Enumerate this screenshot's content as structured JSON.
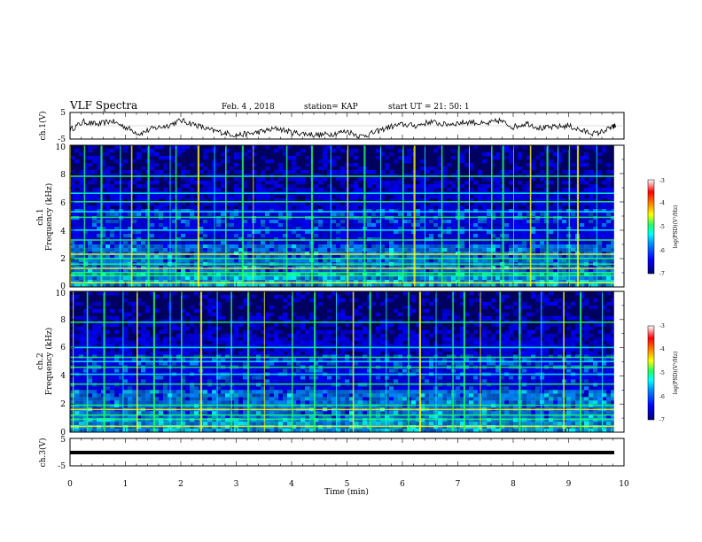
{
  "header": {
    "title": "VLF Spectra",
    "date": "Feb. 4 , 2018",
    "station": "station= KAP",
    "start": "start UT =   21: 50: 1"
  },
  "colors": {
    "colormap": [
      "#00007a",
      "#0000ff",
      "#0090ff",
      "#00ffff",
      "#20ff60",
      "#ffff00",
      "#ff7f00",
      "#ff0000",
      "#ffffff"
    ]
  },
  "chart_data": [
    {
      "type": "line",
      "ylabel": "ch.1(V)",
      "ylim": [
        -5,
        5
      ],
      "yticks": [
        "5",
        "-5"
      ],
      "xlim": [
        0,
        10
      ],
      "x": [
        0,
        0.25,
        0.5,
        0.75,
        1.0,
        1.25,
        1.5,
        1.75,
        2.0,
        2.25,
        2.5,
        2.75,
        3.0,
        3.25,
        3.5,
        3.75,
        4.0,
        4.25,
        4.5,
        4.75,
        5.0,
        5.25,
        5.5,
        5.75,
        6.0,
        6.25,
        6.5,
        6.75,
        7.0,
        7.25,
        7.5,
        7.75,
        8.0,
        8.25,
        8.5,
        8.75,
        9.0,
        9.25,
        9.5,
        9.75,
        9.85
      ],
      "y": [
        -1.5,
        1.5,
        0.5,
        1.8,
        -0.5,
        -3.0,
        -1.0,
        0.0,
        2.0,
        0.5,
        -1.5,
        -2.5,
        -3.5,
        -3.0,
        -2.0,
        -1.0,
        -2.5,
        -3.0,
        -3.5,
        -3.0,
        -2.0,
        -4.0,
        -2.5,
        -0.5,
        0.5,
        0.0,
        1.5,
        0.5,
        1.0,
        1.5,
        0.5,
        2.0,
        -0.5,
        1.0,
        -1.0,
        -0.5,
        0.0,
        -2.0,
        -3.0,
        -1.0,
        0.0
      ]
    },
    {
      "type": "heatmap",
      "ylabel": "ch.1 Frequency (kHz)",
      "ylim": [
        0,
        10
      ],
      "yticks": [
        "0",
        "2",
        "4",
        "6",
        "8",
        "10"
      ],
      "colorbar": {
        "label": "log(PSD)(V²/Hz)",
        "ticks": [
          "-3",
          "-4",
          "-5",
          "-6",
          "-7"
        ],
        "range": [
          -7,
          -3
        ]
      },
      "horizontal_bands_kHz": [
        0.3,
        0.8,
        1.0,
        1.3,
        1.6,
        2.0,
        2.3,
        3.3,
        4.0,
        4.9,
        5.3,
        6.0,
        6.6,
        7.8
      ],
      "impulse_times_min": [
        0.0,
        0.25,
        0.55,
        0.9,
        1.1,
        1.4,
        1.8,
        1.9,
        2.3,
        2.6,
        2.8,
        3.1,
        3.3,
        3.9,
        4.35,
        4.7,
        5.0,
        5.3,
        5.6,
        6.0,
        6.2,
        6.4,
        6.7,
        7.0,
        7.2,
        7.6,
        7.8,
        8.0,
        8.3,
        8.6,
        8.8,
        9.0,
        9.15,
        9.5
      ]
    },
    {
      "type": "heatmap",
      "ylabel": "ch.2 Frequency (kHz)",
      "ylim": [
        0,
        10
      ],
      "yticks": [
        "0",
        "2",
        "4",
        "6",
        "8",
        "10"
      ],
      "colorbar": {
        "label": "log(PSD)(V²/Hz)",
        "ticks": [
          "-3",
          "-4",
          "-5",
          "-6",
          "-7"
        ],
        "range": [
          -7,
          -3
        ]
      },
      "horizontal_bands_kHz": [
        0.4,
        0.9,
        1.2,
        1.6,
        1.9,
        3.4,
        4.1,
        4.6,
        5.0,
        5.3,
        6.0,
        7.8
      ],
      "impulse_times_min": [
        0.05,
        0.3,
        0.6,
        0.95,
        1.2,
        1.5,
        1.8,
        2.0,
        2.35,
        2.65,
        2.9,
        3.2,
        3.5,
        4.0,
        4.4,
        4.8,
        5.1,
        5.4,
        5.7,
        6.1,
        6.3,
        6.6,
        6.9,
        7.1,
        7.4,
        7.75,
        8.1,
        8.5,
        8.9,
        9.2,
        9.6
      ]
    },
    {
      "type": "line",
      "ylabel": "ch.3(V)",
      "ylim": [
        -5,
        5
      ],
      "yticks": [
        "5",
        "-5"
      ],
      "x": [
        0,
        9.85
      ],
      "y": [
        0,
        0
      ]
    }
  ],
  "xaxis": {
    "label": "Time  (min)",
    "ticks": [
      "0",
      "1",
      "2",
      "3",
      "4",
      "5",
      "6",
      "7",
      "8",
      "9",
      "10"
    ],
    "range": [
      0,
      10
    ]
  }
}
